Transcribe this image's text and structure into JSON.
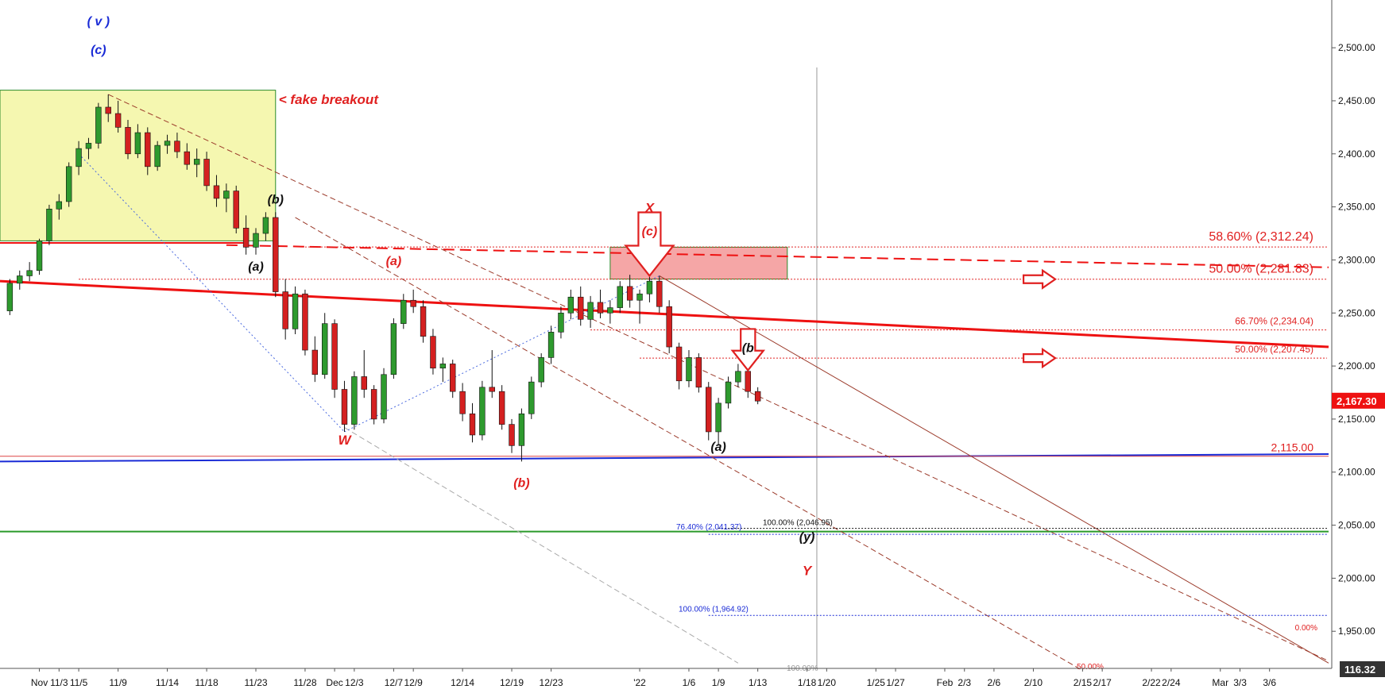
{
  "chart_data": {
    "type": "candlestick",
    "y_axis": {
      "range": [
        1915,
        2545
      ],
      "ticks": [
        "2,500.00",
        "2,450.00",
        "2,400.00",
        "2,350.00",
        "2,300.00",
        "2,250.00",
        "2,200.00",
        "2,150.00",
        "2,100.00",
        "2,050.00",
        "2,000.00",
        "1,950.00"
      ],
      "tick_values": [
        2500,
        2450,
        2400,
        2350,
        2300,
        2250,
        2200,
        2150,
        2100,
        2050,
        2000,
        1950
      ]
    },
    "x_axis": {
      "labels": [
        "Nov",
        "11/3",
        "11/5",
        "11/9",
        "11/14",
        "11/18",
        "11/23",
        "11/28",
        "Dec",
        "12/3",
        "12/7",
        "12/9",
        "12/14",
        "12/19",
        "12/23",
        "'22",
        "1/6",
        "1/9",
        "1/13",
        "1/18",
        "1/20",
        "1/25",
        "1/27",
        "Feb",
        "2/3",
        "2/6",
        "2/10",
        "2/15",
        "2/17",
        "2/22",
        "2/24",
        "Mar",
        "3/3",
        "3/6"
      ],
      "dates": [
        "2021-11-01",
        "2021-11-03",
        "2021-11-05",
        "2021-11-09",
        "2021-11-14",
        "2021-11-18",
        "2021-11-23",
        "2021-11-28",
        "2021-12-01",
        "2021-12-03",
        "2021-12-07",
        "2021-12-09",
        "2021-12-14",
        "2021-12-19",
        "2021-12-23",
        "2022-01-01",
        "2022-01-06",
        "2022-01-09",
        "2022-01-13",
        "2022-01-18",
        "2022-01-20",
        "2022-01-25",
        "2022-01-27",
        "2022-02-01",
        "2022-02-03",
        "2022-02-06",
        "2022-02-10",
        "2022-02-15",
        "2022-02-17",
        "2022-02-22",
        "2022-02-24",
        "2022-03-01",
        "2022-03-03",
        "2022-03-06"
      ],
      "range": [
        "2021-10-28",
        "2022-03-12"
      ]
    },
    "price_badges": [
      {
        "label": "2,167.30",
        "value": 2167.3,
        "color": "#ee1111"
      },
      {
        "label": "116.32",
        "value": null,
        "color": "#333333"
      }
    ],
    "candles": [
      [
        "2021-10-29",
        2252,
        2282,
        2248,
        2278
      ],
      [
        "2021-10-30",
        2278,
        2290,
        2272,
        2285
      ],
      [
        "2021-10-31",
        2285,
        2298,
        2280,
        2290
      ],
      [
        "2021-11-01",
        2290,
        2320,
        2286,
        2318
      ],
      [
        "2021-11-02",
        2318,
        2352,
        2314,
        2348
      ],
      [
        "2021-11-03",
        2348,
        2362,
        2338,
        2355
      ],
      [
        "2021-11-04",
        2355,
        2392,
        2350,
        2388
      ],
      [
        "2021-11-05",
        2388,
        2412,
        2380,
        2405
      ],
      [
        "2021-11-06",
        2405,
        2415,
        2395,
        2410
      ],
      [
        "2021-11-07",
        2410,
        2448,
        2405,
        2444
      ],
      [
        "2021-11-08",
        2444,
        2456,
        2430,
        2438
      ],
      [
        "2021-11-09",
        2438,
        2450,
        2420,
        2425
      ],
      [
        "2021-11-10",
        2425,
        2432,
        2395,
        2400
      ],
      [
        "2021-11-11",
        2400,
        2428,
        2396,
        2420
      ],
      [
        "2021-11-12",
        2420,
        2425,
        2380,
        2388
      ],
      [
        "2021-11-13",
        2388,
        2412,
        2384,
        2408
      ],
      [
        "2021-11-14",
        2408,
        2418,
        2400,
        2412
      ],
      [
        "2021-11-15",
        2412,
        2420,
        2396,
        2402
      ],
      [
        "2021-11-16",
        2402,
        2410,
        2385,
        2390
      ],
      [
        "2021-11-17",
        2390,
        2405,
        2378,
        2395
      ],
      [
        "2021-11-18",
        2395,
        2402,
        2365,
        2370
      ],
      [
        "2021-11-19",
        2370,
        2380,
        2350,
        2358
      ],
      [
        "2021-11-20",
        2358,
        2372,
        2345,
        2365
      ],
      [
        "2021-11-21",
        2365,
        2370,
        2325,
        2330
      ],
      [
        "2021-11-22",
        2330,
        2342,
        2305,
        2312
      ],
      [
        "2021-11-23",
        2312,
        2330,
        2305,
        2325
      ],
      [
        "2021-11-24",
        2325,
        2345,
        2318,
        2340
      ],
      [
        "2021-11-25",
        2340,
        2345,
        2265,
        2270
      ],
      [
        "2021-11-26",
        2270,
        2282,
        2225,
        2235
      ],
      [
        "2021-11-27",
        2235,
        2275,
        2230,
        2268
      ],
      [
        "2021-11-28",
        2268,
        2272,
        2210,
        2215
      ],
      [
        "2021-11-29",
        2215,
        2228,
        2185,
        2192
      ],
      [
        "2021-11-30",
        2192,
        2250,
        2188,
        2240
      ],
      [
        "2021-12-01",
        2240,
        2244,
        2170,
        2178
      ],
      [
        "2021-12-02",
        2178,
        2186,
        2138,
        2145
      ],
      [
        "2021-12-03",
        2145,
        2195,
        2140,
        2190
      ],
      [
        "2021-12-04",
        2190,
        2215,
        2170,
        2178
      ],
      [
        "2021-12-05",
        2178,
        2182,
        2145,
        2150
      ],
      [
        "2021-12-06",
        2150,
        2198,
        2146,
        2192
      ],
      [
        "2021-12-07",
        2192,
        2245,
        2188,
        2240
      ],
      [
        "2021-12-08",
        2240,
        2268,
        2235,
        2262
      ],
      [
        "2021-12-09",
        2262,
        2272,
        2250,
        2256
      ],
      [
        "2021-12-10",
        2256,
        2262,
        2222,
        2228
      ],
      [
        "2021-12-11",
        2228,
        2235,
        2192,
        2198
      ],
      [
        "2021-12-12",
        2198,
        2208,
        2185,
        2202
      ],
      [
        "2021-12-13",
        2202,
        2206,
        2170,
        2176
      ],
      [
        "2021-12-14",
        2176,
        2184,
        2148,
        2155
      ],
      [
        "2021-12-15",
        2155,
        2165,
        2128,
        2135
      ],
      [
        "2021-12-16",
        2135,
        2186,
        2130,
        2180
      ],
      [
        "2021-12-17",
        2180,
        2215,
        2170,
        2176
      ],
      [
        "2021-12-18",
        2176,
        2182,
        2140,
        2145
      ],
      [
        "2021-12-19",
        2145,
        2150,
        2118,
        2125
      ],
      [
        "2021-12-20",
        2125,
        2160,
        2110,
        2155
      ],
      [
        "2021-12-21",
        2155,
        2190,
        2150,
        2185
      ],
      [
        "2021-12-22",
        2185,
        2212,
        2180,
        2208
      ],
      [
        "2021-12-23",
        2208,
        2238,
        2202,
        2232
      ],
      [
        "2021-12-24",
        2232,
        2256,
        2226,
        2250
      ],
      [
        "2021-12-25",
        2250,
        2272,
        2244,
        2265
      ],
      [
        "2021-12-26",
        2265,
        2275,
        2238,
        2244
      ],
      [
        "2021-12-27",
        2244,
        2266,
        2236,
        2260
      ],
      [
        "2021-12-28",
        2260,
        2272,
        2245,
        2250
      ],
      [
        "2021-12-29",
        2250,
        2262,
        2240,
        2255
      ],
      [
        "2021-12-30",
        2255,
        2280,
        2250,
        2275
      ],
      [
        "2021-12-31",
        2275,
        2286,
        2255,
        2262
      ],
      [
        "2022-01-01",
        2262,
        2272,
        2240,
        2268
      ],
      [
        "2022-01-02",
        2268,
        2284,
        2260,
        2280
      ],
      [
        "2022-01-03",
        2280,
        2285,
        2250,
        2256
      ],
      [
        "2022-01-04",
        2256,
        2262,
        2212,
        2218
      ],
      [
        "2022-01-05",
        2218,
        2222,
        2178,
        2186
      ],
      [
        "2022-01-06",
        2186,
        2215,
        2180,
        2208
      ],
      [
        "2022-01-07",
        2208,
        2212,
        2175,
        2180
      ],
      [
        "2022-01-08",
        2180,
        2185,
        2130,
        2138
      ],
      [
        "2022-01-09",
        2138,
        2170,
        2125,
        2165
      ],
      [
        "2022-01-10",
        2165,
        2190,
        2160,
        2185
      ],
      [
        "2022-01-11",
        2185,
        2202,
        2180,
        2195
      ],
      [
        "2022-01-12",
        2195,
        2200,
        2170,
        2176
      ],
      [
        "2022-01-13",
        2176,
        2180,
        2164,
        2167
      ]
    ],
    "wave_labels": [
      {
        "text": "( v )",
        "date": "2021-11-07",
        "value": 2521,
        "color": "#1a2bd6"
      },
      {
        "text": "(c)",
        "date": "2021-11-07",
        "value": 2494,
        "color": "#1a2bd6"
      },
      {
        "text": "(b)",
        "date": "2021-11-25",
        "value": 2353,
        "color": "#111111"
      },
      {
        "text": "(a)",
        "date": "2021-11-23",
        "value": 2290,
        "color": "#111111"
      },
      {
        "text": "(a)",
        "date": "2021-12-07",
        "value": 2295,
        "color": "#e02020"
      },
      {
        "text": "W",
        "date": "2021-12-02",
        "value": 2126,
        "color": "#e02020"
      },
      {
        "text": "(b)",
        "date": "2021-12-20",
        "value": 2086,
        "color": "#e02020"
      },
      {
        "text": "X",
        "date": "2022-01-02",
        "value": 2345,
        "color": "#e02020"
      },
      {
        "text": "(c)",
        "date": "2022-01-02",
        "value": 2323,
        "color": "#e02020"
      },
      {
        "text": "(b",
        "date": "2022-01-12",
        "value": 2213,
        "color": "#111111"
      },
      {
        "text": "(a)",
        "date": "2022-01-09",
        "value": 2120,
        "color": "#111111"
      },
      {
        "text": "(y)",
        "date": "2022-01-18",
        "value": 2035,
        "color": "#111111"
      },
      {
        "text": "Y",
        "date": "2022-01-18",
        "value": 2003,
        "color": "#e02020"
      }
    ],
    "annotations": [
      {
        "text": "< fake breakout",
        "date": "2021-11-25",
        "value": 2447,
        "color": "#e02020"
      }
    ],
    "fib_levels": [
      {
        "label": "58.60% (2,312.24)",
        "value": 2312.24,
        "color": "#e02020"
      },
      {
        "label": "50.00% (2,281.83)",
        "value": 2281.83,
        "color": "#e02020"
      },
      {
        "label": "66.70% (2,234.04)",
        "value": 2234.04,
        "color": "#e02020"
      },
      {
        "label": "50.00% (2,207.45)",
        "value": 2207.45,
        "color": "#e02020"
      },
      {
        "label": "2,115.00",
        "value": 2115,
        "color": "#e02020"
      },
      {
        "label": "100.00% (2,046.95)",
        "value": 2046.95,
        "color": "#111111"
      },
      {
        "label": "76.40% (2,041.37)",
        "value": 2041.37,
        "color": "#1a2bd6"
      },
      {
        "label": "100.00% (1,964.92)",
        "value": 1964.92,
        "color": "#1a2bd6"
      },
      {
        "label": "0.00%",
        "value": null,
        "color": "#e02020"
      },
      {
        "label": "50.00%",
        "value": null,
        "color": "#e02020"
      },
      {
        "label": "100.00%",
        "value": null,
        "color": "#999999"
      }
    ],
    "trend_lines": [
      {
        "name": "red-solid-trendline",
        "from": [
          "2021-10-28",
          2280
        ],
        "to": [
          "2022-03-12",
          2218
        ],
        "color": "#ee1111",
        "style": "solid",
        "width": 3
      },
      {
        "name": "red-dashed-trendline",
        "from": [
          "2021-11-20",
          2314
        ],
        "to": [
          "2022-03-12",
          2293
        ],
        "color": "#ee1111",
        "style": "dashed",
        "width": 2
      },
      {
        "name": "red-solid-left-segment",
        "from": [
          "2021-10-28",
          2316
        ],
        "to": [
          "2021-11-22",
          2316
        ],
        "color": "#ee1111",
        "style": "solid",
        "width": 2
      },
      {
        "name": "blue-support-line",
        "from": [
          "2021-10-28",
          2110
        ],
        "to": [
          "2022-03-12",
          2117
        ],
        "color": "#1a2bd6",
        "style": "solid",
        "width": 2
      },
      {
        "name": "thin-red-support-line",
        "from": [
          "2021-10-28",
          2115
        ],
        "to": [
          "2022-03-12",
          2115
        ],
        "color": "#dd4444",
        "style": "solid",
        "width": 1
      },
      {
        "name": "green-horizontal-line",
        "from": [
          "2021-10-28",
          2044
        ],
        "to": [
          "2022-03-12",
          2044
        ],
        "color": "#2a9a2a",
        "style": "solid",
        "width": 2
      },
      {
        "name": "channel-upper-line",
        "from": [
          "2021-11-08",
          2456
        ],
        "to": [
          "2022-03-12",
          1922
        ],
        "color": "#9b3a2a",
        "style": "dashed",
        "width": 1
      },
      {
        "name": "channel-lower-line",
        "from": [
          "2021-11-27",
          2340
        ],
        "to": [
          "2022-02-15",
          1913
        ],
        "color": "#9b3a2a",
        "style": "dashed",
        "width": 1
      },
      {
        "name": "x-wave-down-line",
        "from": [
          "2022-01-03",
          2285
        ],
        "to": [
          "2022-03-12",
          1920
        ],
        "color": "#9b3a2a",
        "style": "solid",
        "width": 1
      },
      {
        "name": "grey-channel-line",
        "from": [
          "2021-12-02",
          2142
        ],
        "to": [
          "2022-01-11",
          1920
        ],
        "color": "#aaaaaa",
        "style": "dashed",
        "width": 1
      },
      {
        "name": "blue-dotted-channel",
        "from": [
          "2021-11-05",
          2400
        ],
        "to": [
          "2021-12-02",
          2138
        ],
        "color": "#4a6adf",
        "style": "dotted",
        "width": 1
      },
      {
        "name": "blue-dotted-rise",
        "from": [
          "2021-12-02",
          2138
        ],
        "to": [
          "2022-01-03",
          2285
        ],
        "color": "#4a6adf",
        "style": "dotted",
        "width": 1
      }
    ],
    "zones": [
      {
        "name": "yellow-box",
        "from_date": "2021-10-28",
        "to_date": "2021-11-25",
        "from_value": 2318,
        "to_value": 2460,
        "fill": "#f5f7b0",
        "stroke": "#2a8a2a"
      },
      {
        "name": "red-box",
        "from_date": "2021-12-29",
        "to_date": "2022-01-16",
        "from_value": 2282,
        "to_value": 2312,
        "fill": "#f5a6a6",
        "stroke": "#2a8a2a"
      }
    ],
    "vertical_lines": [
      {
        "date": "2022-01-19",
        "color": "#999999"
      }
    ],
    "big_arrows": [
      {
        "name": "x-down-arrow",
        "date": "2022-01-02",
        "value": 2285,
        "direction": "down",
        "size": "large"
      },
      {
        "name": "b-down-arrow",
        "date": "2022-01-12",
        "value": 2196,
        "direction": "down",
        "size": "medium"
      },
      {
        "name": "fib-right-arrow-1",
        "date": "2022-02-09",
        "value": 2281.83,
        "direction": "right",
        "size": "small"
      },
      {
        "name": "fib-right-arrow-2",
        "date": "2022-02-09",
        "value": 2207.45,
        "direction": "right",
        "size": "small"
      }
    ]
  }
}
